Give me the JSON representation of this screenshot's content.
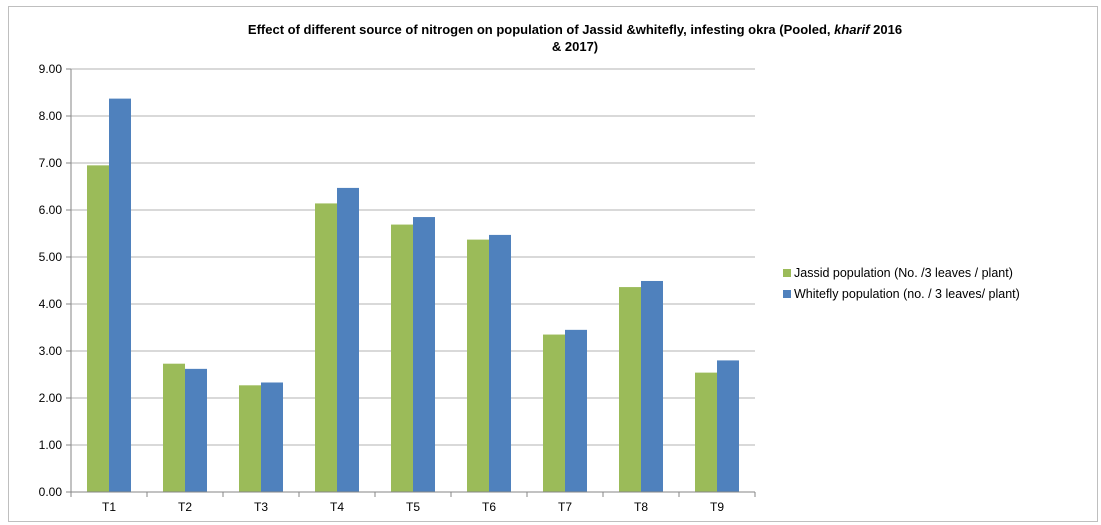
{
  "chart_data": {
    "type": "bar",
    "title_parts": [
      "Effect of different source of nitrogen on population of Jassid &whitefly, infesting okra (Pooled, ",
      "kharif",
      " 2016",
      "& 2017)"
    ],
    "categories": [
      "T1",
      "T2",
      "T3",
      "T4",
      "T5",
      "T6",
      "T7",
      "T8",
      "T9"
    ],
    "series": [
      {
        "name": "Jassid population (No. /3 leaves / plant)",
        "color": "#9bbb59",
        "values": [
          6.95,
          2.73,
          2.27,
          6.14,
          5.69,
          5.37,
          3.35,
          4.36,
          2.54
        ]
      },
      {
        "name": "Whitefly population (no. / 3 leaves/ plant)",
        "color": "#4f81bd",
        "values": [
          8.37,
          2.62,
          2.33,
          6.47,
          5.85,
          5.47,
          3.45,
          4.49,
          2.8
        ]
      }
    ],
    "ylim": [
      0,
      9
    ],
    "yticks": [
      "0.00",
      "1.00",
      "2.00",
      "3.00",
      "4.00",
      "5.00",
      "6.00",
      "7.00",
      "8.00",
      "9.00"
    ],
    "grid": true,
    "legend_position": "right",
    "xlabel": "",
    "ylabel": ""
  }
}
